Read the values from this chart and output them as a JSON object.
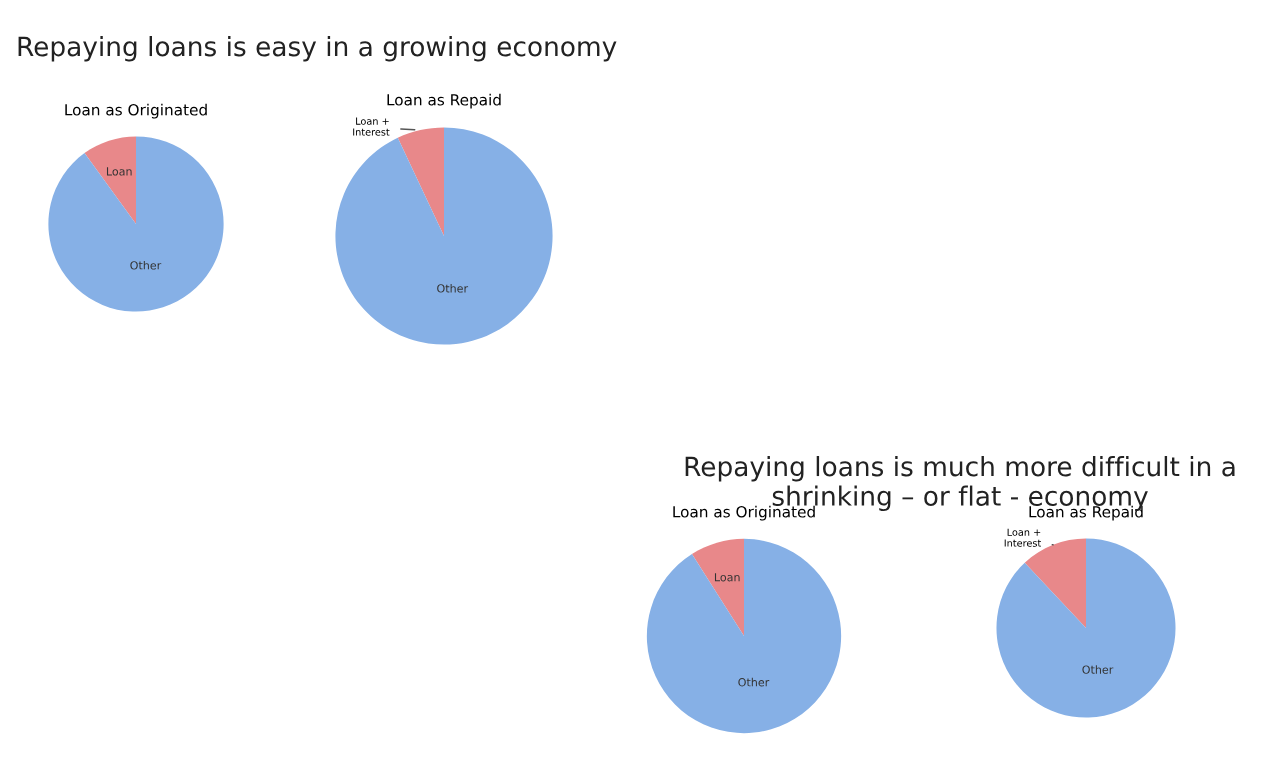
{
  "chart_data": [
    {
      "type": "pie",
      "title": "Loan as Originated",
      "annotations": [
        "Repaying loans is easy in a growing economy"
      ],
      "categories": [
        "Loan",
        "Other"
      ],
      "values": [
        10,
        90
      ],
      "colors": [
        "#e8888a",
        "#86b0e6"
      ]
    },
    {
      "type": "pie",
      "title": "Loan as Repaid",
      "categories": [
        "Loan + Interest",
        "Other"
      ],
      "values": [
        7,
        93
      ],
      "colors": [
        "#e8888a",
        "#86b0e6"
      ]
    },
    {
      "type": "pie",
      "title": "Loan as Originated",
      "annotations": [
        "Repaying loans is much more difficult in a shrinking – or flat - economy"
      ],
      "categories": [
        "Loan",
        "Other"
      ],
      "values": [
        9,
        91
      ],
      "colors": [
        "#e8888a",
        "#86b0e6"
      ]
    },
    {
      "type": "pie",
      "title": "Loan as Repaid",
      "categories": [
        "Loan + Interest",
        "Other"
      ],
      "values": [
        12,
        88
      ],
      "colors": [
        "#e8888a",
        "#86b0e6"
      ]
    }
  ]
}
